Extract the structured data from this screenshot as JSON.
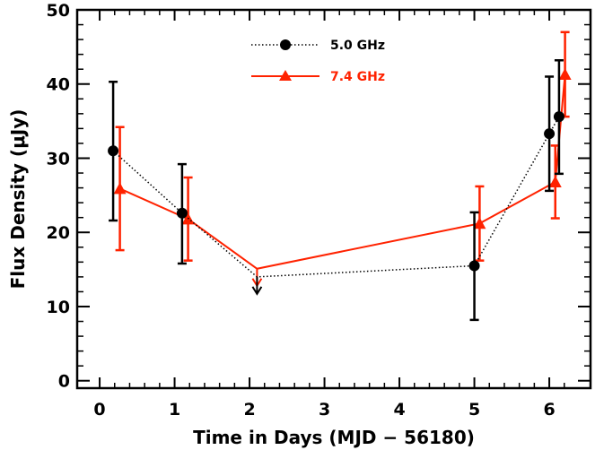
{
  "chart_data": {
    "type": "scatter",
    "xlabel": "Time in Days (MJD − 56180)",
    "ylabel": "Flux Density (μJy)",
    "xlim": [
      -0.3,
      6.55
    ],
    "ylim": [
      -1,
      50
    ],
    "x_ticks": [
      "0",
      "1",
      "2",
      "3",
      "4",
      "5",
      "6"
    ],
    "y_ticks": [
      "0",
      "10",
      "20",
      "30",
      "40",
      "50"
    ],
    "legend_position": "top-center",
    "series": [
      {
        "name": "5.0 GHz",
        "color": "#000000",
        "marker": "circle",
        "line": "dotted",
        "points": [
          {
            "x": 0.18,
            "y": 31.0,
            "err_low": 21.6,
            "err_high": 40.3
          },
          {
            "x": 1.1,
            "y": 22.6,
            "err_low": 15.8,
            "err_high": 29.2
          },
          {
            "x": 2.1,
            "y": 14.0,
            "upper_limit": true
          },
          {
            "x": 5.0,
            "y": 15.5,
            "err_low": 8.2,
            "err_high": 22.7
          },
          {
            "x": 6.0,
            "y": 33.3,
            "err_low": 25.6,
            "err_high": 41.0
          },
          {
            "x": 6.13,
            "y": 35.6,
            "err_low": 27.9,
            "err_high": 43.2
          }
        ]
      },
      {
        "name": "7.4 GHz",
        "color": "#ff2200",
        "marker": "triangle",
        "line": "solid",
        "points": [
          {
            "x": 0.27,
            "y": 25.9,
            "err_low": 17.6,
            "err_high": 34.2
          },
          {
            "x": 1.18,
            "y": 21.8,
            "err_low": 16.2,
            "err_high": 27.4
          },
          {
            "x": 2.1,
            "y": 15.1,
            "upper_limit": true
          },
          {
            "x": 5.07,
            "y": 21.2,
            "err_low": 16.2,
            "err_high": 26.2
          },
          {
            "x": 6.08,
            "y": 26.8,
            "err_low": 21.9,
            "err_high": 31.7
          },
          {
            "x": 6.21,
            "y": 41.3,
            "err_low": 35.6,
            "err_high": 47.0
          }
        ]
      }
    ]
  }
}
